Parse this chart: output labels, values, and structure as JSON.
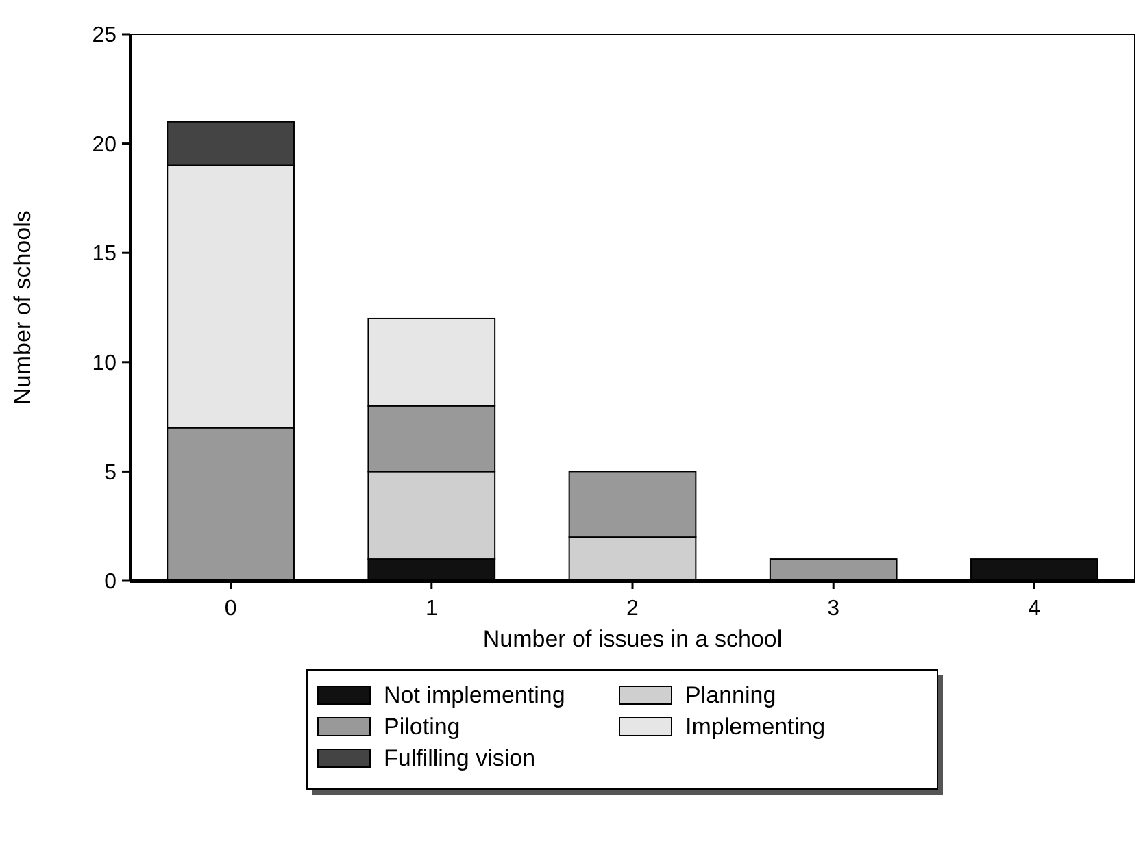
{
  "chart_data": {
    "type": "bar",
    "xlabel": "Number of issues in a school",
    "ylabel": "Number of schools",
    "categories": [
      "0",
      "1",
      "2",
      "3",
      "4"
    ],
    "stacked": true,
    "ylim": [
      0,
      25
    ],
    "yticks": [
      0,
      5,
      10,
      15,
      20,
      25
    ],
    "grid": false,
    "legend": "bottom",
    "series": [
      {
        "name": "Not implementing",
        "color": "#111111",
        "values": [
          0,
          1,
          0,
          0,
          1
        ]
      },
      {
        "name": "Planning",
        "color": "#cfcfcf",
        "values": [
          0,
          4,
          2,
          0,
          0
        ]
      },
      {
        "name": "Piloting",
        "color": "#999999",
        "values": [
          7,
          3,
          3,
          1,
          0
        ]
      },
      {
        "name": "Implementing",
        "color": "#e6e6e6",
        "values": [
          12,
          4,
          0,
          0,
          0
        ]
      },
      {
        "name": "Fulfilling vision",
        "color": "#444444",
        "values": [
          2,
          0,
          0,
          0,
          0
        ]
      }
    ]
  }
}
